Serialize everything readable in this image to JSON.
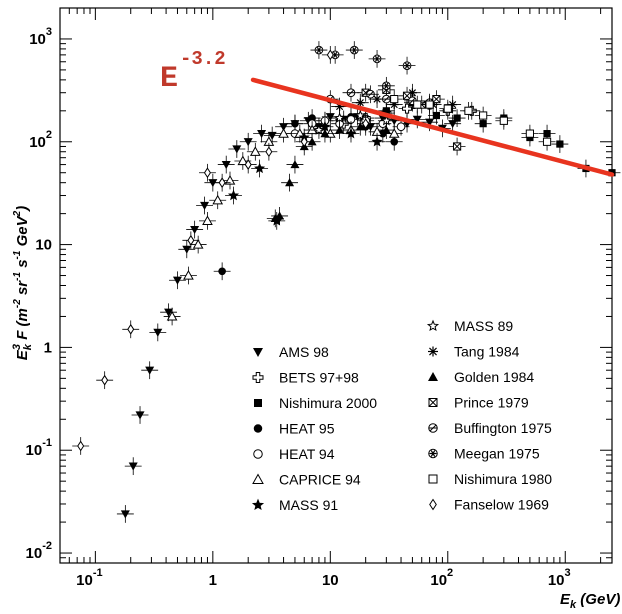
{
  "chart_data": {
    "type": "scatter",
    "xscale": "log",
    "yscale": "log",
    "xlim": [
      0.05,
      2500
    ],
    "ylim": [
      0.008,
      2000
    ],
    "grid": false,
    "legend_placement": "bottom-right",
    "title": "",
    "xlabel": {
      "base": "E",
      "sub": "k",
      "rest": " (GeV)"
    },
    "ylabel": {
      "base": "E",
      "sub": "k",
      "sup": "3",
      "rest": " F (m",
      "u1": "-2",
      "r2": " sr",
      "u2": "-1",
      "r3": " s",
      "u3": "-1",
      "r4": " GeV",
      "u4": "2",
      "r5": ")"
    },
    "x_ticks": [
      {
        "value": 0.1,
        "base": "10",
        "exp": "-1"
      },
      {
        "value": 1,
        "base": "1",
        "exp": ""
      },
      {
        "value": 10,
        "base": "10",
        "exp": ""
      },
      {
        "value": 100,
        "base": "10",
        "exp": "2"
      },
      {
        "value": 1000,
        "base": "10",
        "exp": "3"
      }
    ],
    "y_ticks": [
      {
        "value": 0.01,
        "base": "10",
        "exp": "-2"
      },
      {
        "value": 0.1,
        "base": "10",
        "exp": "-1"
      },
      {
        "value": 1,
        "base": "1",
        "exp": ""
      },
      {
        "value": 10,
        "base": "10",
        "exp": ""
      },
      {
        "value": 100,
        "base": "10",
        "exp": "2"
      },
      {
        "value": 1000,
        "base": "10",
        "exp": "3"
      }
    ],
    "annotation": {
      "base": "E",
      "exp": "-3.2",
      "color": "#d93a2b"
    },
    "fit_line": {
      "color": "#e8341f",
      "points": [
        [
          2.2,
          400
        ],
        [
          2500,
          48
        ]
      ]
    },
    "series": [
      {
        "name": "AMS 98",
        "marker": "tri-down-filled",
        "points": [
          [
            0.18,
            0.024
          ],
          [
            0.21,
            0.07
          ],
          [
            0.24,
            0.22
          ],
          [
            0.29,
            0.6
          ],
          [
            0.34,
            1.4
          ],
          [
            0.42,
            2.2
          ],
          [
            0.5,
            4.5
          ],
          [
            0.6,
            9
          ],
          [
            0.7,
            14
          ],
          [
            0.85,
            24
          ],
          [
            1.0,
            40
          ],
          [
            1.3,
            60
          ],
          [
            1.6,
            85
          ],
          [
            2.0,
            100
          ],
          [
            2.6,
            120
          ],
          [
            3.2,
            115
          ],
          [
            4.0,
            140
          ],
          [
            5.0,
            150
          ],
          [
            6.5,
            160
          ],
          [
            8,
            140
          ],
          [
            10,
            175
          ],
          [
            13,
            165
          ],
          [
            17,
            175
          ],
          [
            22,
            140
          ],
          [
            28,
            170
          ],
          [
            35,
            160
          ],
          [
            45,
            150
          ],
          [
            55,
            165
          ],
          [
            70,
            155
          ],
          [
            90,
            135
          ],
          [
            110,
            150
          ]
        ]
      },
      {
        "name": "BETS 97+98",
        "marker": "cross-open",
        "points": [
          [
            13,
            150
          ],
          [
            20,
            170
          ],
          [
            30,
            190
          ],
          [
            45,
            210
          ],
          [
            70,
            230
          ],
          [
            100,
            200
          ],
          [
            160,
            200
          ]
        ]
      },
      {
        "name": "Nishimura 2000",
        "marker": "square-filled",
        "points": [
          [
            30,
            200
          ],
          [
            50,
            240
          ],
          [
            80,
            180
          ],
          [
            120,
            170
          ],
          [
            200,
            150
          ],
          [
            300,
            170
          ],
          [
            500,
            110
          ],
          [
            700,
            120
          ],
          [
            900,
            95
          ],
          [
            1500,
            55
          ],
          [
            2500,
            50
          ]
        ]
      },
      {
        "name": "HEAT 95",
        "marker": "circle-filled",
        "points": [
          [
            1.2,
            5.5
          ],
          [
            5,
            150
          ],
          [
            7,
            170
          ],
          [
            9,
            160
          ],
          [
            12,
            160
          ],
          [
            15,
            175
          ],
          [
            20,
            140
          ],
          [
            28,
            120
          ],
          [
            35,
            100
          ]
        ]
      },
      {
        "name": "HEAT 94",
        "marker": "circle-open",
        "points": [
          [
            5,
            120
          ],
          [
            7,
            150
          ],
          [
            9,
            160
          ],
          [
            12,
            150
          ],
          [
            15,
            165
          ],
          [
            20,
            160
          ],
          [
            28,
            150
          ],
          [
            40,
            140
          ]
        ]
      },
      {
        "name": "CAPRICE 94",
        "marker": "tri-up-open",
        "points": [
          [
            0.45,
            2.0
          ],
          [
            0.62,
            5.0
          ],
          [
            0.75,
            10
          ],
          [
            0.9,
            17
          ],
          [
            1.1,
            27
          ],
          [
            1.4,
            42
          ],
          [
            1.8,
            65
          ],
          [
            2.3,
            80
          ],
          [
            3,
            100
          ],
          [
            4,
            120
          ],
          [
            5.5,
            120
          ],
          [
            7,
            130
          ],
          [
            10,
            120
          ],
          [
            15,
            130
          ],
          [
            25,
            125
          ],
          [
            35,
            120
          ]
        ]
      },
      {
        "name": "MASS 91",
        "marker": "star-filled",
        "points": [
          [
            1.5,
            30
          ],
          [
            2.5,
            55
          ],
          [
            3.5,
            17
          ],
          [
            6,
            110
          ],
          [
            9,
            140
          ],
          [
            15,
            120
          ],
          [
            25,
            100
          ]
        ]
      },
      {
        "name": "MASS 89",
        "marker": "star-open",
        "points": [
          [
            8,
            130
          ],
          [
            12,
            170
          ],
          [
            18,
            180
          ],
          [
            30,
            160
          ]
        ]
      },
      {
        "name": "Tang 1984",
        "marker": "asterisk",
        "points": [
          [
            12,
            220
          ],
          [
            18,
            240
          ],
          [
            25,
            260
          ],
          [
            35,
            230
          ],
          [
            50,
            300
          ],
          [
            75,
            230
          ],
          [
            110,
            230
          ]
        ]
      },
      {
        "name": "Golden 1984",
        "marker": "tri-up-filled",
        "points": [
          [
            3.4,
            18
          ],
          [
            3.7,
            19
          ],
          [
            4.5,
            40
          ],
          [
            5.0,
            60
          ],
          [
            6,
            90
          ],
          [
            7,
            100
          ],
          [
            9,
            120
          ],
          [
            12,
            130
          ],
          [
            18,
            140
          ],
          [
            30,
            130
          ]
        ]
      },
      {
        "name": "Prince 1979",
        "marker": "boxed-x",
        "points": [
          [
            20,
            300
          ],
          [
            30,
            320
          ],
          [
            45,
            280
          ],
          [
            60,
            230
          ],
          [
            80,
            260
          ],
          [
            120,
            90
          ]
        ]
      },
      {
        "name": "Buffington 1975",
        "marker": "circle-hatched",
        "points": [
          [
            10,
            260
          ],
          [
            15,
            300
          ],
          [
            22,
            290
          ],
          [
            30,
            260
          ],
          [
            50,
            250
          ],
          [
            70,
            240
          ]
        ]
      },
      {
        "name": "Meegan 1975",
        "marker": "circle-star",
        "points": [
          [
            8,
            780
          ],
          [
            11,
            700
          ],
          [
            16,
            780
          ],
          [
            25,
            640
          ],
          [
            45,
            550
          ],
          [
            30,
            350
          ]
        ]
      },
      {
        "name": "Nishimura 1980",
        "marker": "square-open",
        "points": [
          [
            35,
            260
          ],
          [
            55,
            230
          ],
          [
            70,
            230
          ],
          [
            100,
            210
          ],
          [
            150,
            200
          ],
          [
            200,
            180
          ],
          [
            300,
            160
          ],
          [
            500,
            120
          ],
          [
            700,
            100
          ]
        ]
      },
      {
        "name": "Fanselow 1969",
        "marker": "diamond-open",
        "points": [
          [
            0.075,
            0.11
          ],
          [
            0.12,
            0.48
          ],
          [
            0.2,
            1.5
          ],
          [
            0.65,
            11
          ],
          [
            0.9,
            50
          ],
          [
            1.2,
            40
          ],
          [
            2,
            60
          ],
          [
            3,
            80
          ],
          [
            10,
            700
          ],
          [
            6,
            100
          ],
          [
            20,
            150
          ]
        ]
      }
    ]
  }
}
